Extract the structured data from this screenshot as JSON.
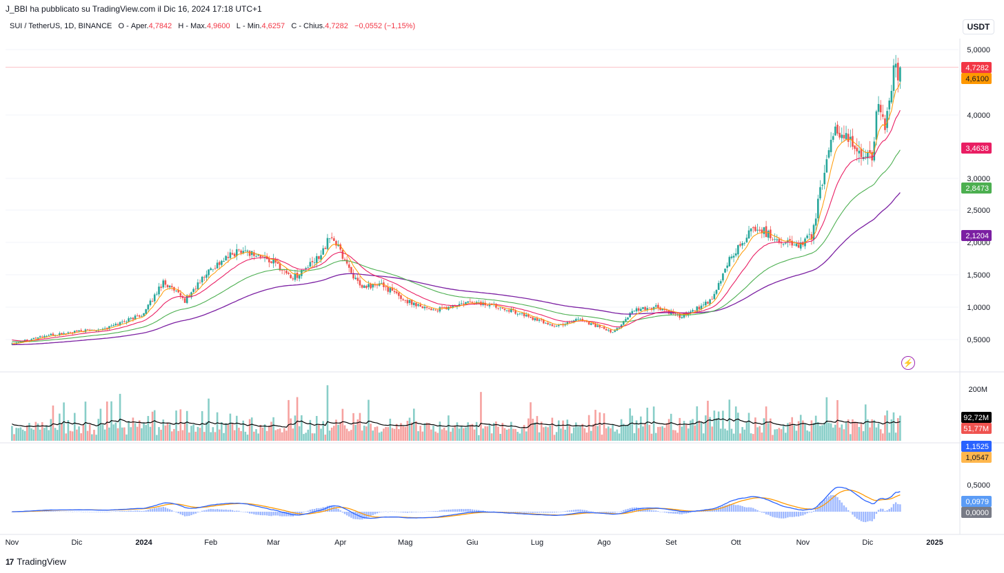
{
  "header": {
    "published_by": "J_BBI ha pubblicato su TradingView.com il Dic 16, 2024 17:18 UTC+1",
    "symbol": "SUI / TetherUS, 1D, BINANCE",
    "open_label": "O",
    "open_text": "Aper.",
    "open_value": "4,7842",
    "high_label": "H",
    "high_text": "Max.",
    "high_value": "4,9600",
    "low_label": "L",
    "low_text": "Min.",
    "low_value": "4,6257",
    "close_label": "C",
    "close_text": "Chius.",
    "close_value": "4,7282",
    "change": "−0,0552 (−1,15%)",
    "currency": "USDT"
  },
  "footer": {
    "brand": "TradingView",
    "logo_mark": "17"
  },
  "colors": {
    "up": "#26a69a",
    "down": "#ef5350",
    "ema_fast": "#ff9800",
    "ema_20": "#e91e63",
    "ema_50": "#4caf50",
    "ema_100": "#7b1fa2",
    "vol_ma": "#000000",
    "macd": "#2962ff",
    "signal": "#ff9800"
  },
  "chart_data": {
    "type": "candlestick",
    "title": "SUI / TetherUS, 1D, BINANCE",
    "x_ticks": [
      "Nov",
      "Dic",
      "2024",
      "Feb",
      "Mar",
      "Apr",
      "Mag",
      "Giu",
      "Lug",
      "Ago",
      "Set",
      "Ott",
      "Nov",
      "Dic",
      "2025"
    ],
    "y_ticks": [
      "5,0000",
      "4,0000",
      "3,0000",
      "2,5000",
      "2,0000",
      "1,5000",
      "1,0000",
      "0,5000"
    ],
    "y_tick_values": [
      5.0,
      4.0,
      3.0,
      2.5,
      2.0,
      1.5,
      1.0,
      0.5
    ],
    "price_anchors": [
      [
        "2023-11-01",
        0.44
      ],
      [
        "2023-11-15",
        0.55
      ],
      [
        "2023-12-01",
        0.62
      ],
      [
        "2023-12-15",
        0.68
      ],
      [
        "2024-01-01",
        0.9
      ],
      [
        "2024-01-10",
        1.4
      ],
      [
        "2024-01-20",
        1.1
      ],
      [
        "2024-02-01",
        1.6
      ],
      [
        "2024-02-15",
        1.9
      ],
      [
        "2024-03-01",
        1.7
      ],
      [
        "2024-03-10",
        1.45
      ],
      [
        "2024-03-20",
        1.7
      ],
      [
        "2024-03-28",
        2.1
      ],
      [
        "2024-04-10",
        1.3
      ],
      [
        "2024-04-20",
        1.35
      ],
      [
        "2024-05-01",
        1.1
      ],
      [
        "2024-05-15",
        0.95
      ],
      [
        "2024-06-01",
        1.08
      ],
      [
        "2024-06-15",
        1.0
      ],
      [
        "2024-07-01",
        0.8
      ],
      [
        "2024-07-10",
        0.7
      ],
      [
        "2024-07-20",
        0.83
      ],
      [
        "2024-08-05",
        0.6
      ],
      [
        "2024-08-15",
        0.95
      ],
      [
        "2024-08-25",
        1.0
      ],
      [
        "2024-09-05",
        0.85
      ],
      [
        "2024-09-20",
        1.1
      ],
      [
        "2024-09-28",
        1.75
      ],
      [
        "2024-10-10",
        2.25
      ],
      [
        "2024-10-20",
        2.05
      ],
      [
        "2024-10-30",
        1.95
      ],
      [
        "2024-11-05",
        2.1
      ],
      [
        "2024-11-12",
        3.3
      ],
      [
        "2024-11-17",
        3.8
      ],
      [
        "2024-11-25",
        3.45
      ],
      [
        "2024-12-03",
        3.4
      ],
      [
        "2024-12-06",
        4.2
      ],
      [
        "2024-12-09",
        3.7
      ],
      [
        "2024-12-13",
        4.6
      ],
      [
        "2024-12-16",
        4.73
      ]
    ],
    "last_values": {
      "close": "4,7282",
      "ema_fast": "4,6100",
      "ema_20": "3,4638",
      "ema_50": "2,8473",
      "ema_100": "2,1204"
    },
    "volume": {
      "tick": "200M",
      "ma_last": "92,72M",
      "last": "51,77M"
    },
    "macd": {
      "macd_last": "1,1525",
      "signal_last": "1,0547",
      "histogram_last": "0,0979",
      "zero": "0,0000",
      "tick": "0,5000"
    }
  }
}
